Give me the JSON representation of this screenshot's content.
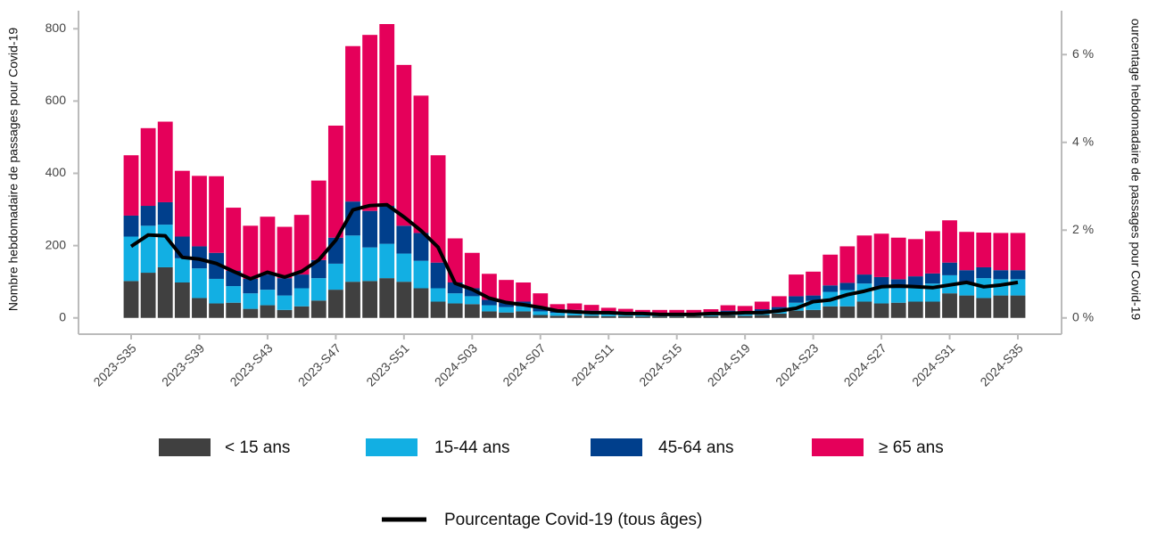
{
  "chart_data": {
    "type": "bar",
    "stacked": true,
    "y_label": "Nombre hebdomadaire de passages pour Covid-19",
    "y2_label": "ourcentage hebdomadaire de passages pour Covid-19",
    "categories": [
      "2023-S35",
      null,
      null,
      null,
      "2023-S39",
      null,
      null,
      null,
      "2023-S43",
      null,
      null,
      null,
      "2023-S47",
      null,
      null,
      null,
      "2023-S51",
      null,
      null,
      null,
      "2024-S03",
      null,
      null,
      null,
      "2024-S07",
      null,
      null,
      null,
      "2024-S11",
      null,
      null,
      null,
      "2024-S15",
      null,
      null,
      null,
      "2024-S19",
      null,
      null,
      null,
      "2024-S23",
      null,
      null,
      null,
      "2024-S27",
      null,
      null,
      null,
      "2024-S31",
      null,
      null,
      null,
      "2024-S35"
    ],
    "ylim": [
      -45,
      850
    ],
    "yticks": [
      0,
      200,
      400,
      600,
      800
    ],
    "y2lim": [
      -0.37,
      7.0
    ],
    "y2ticks": [
      {
        "value": 0,
        "label": "0 %"
      },
      {
        "value": 2,
        "label": "2 %"
      },
      {
        "value": 4,
        "label": "4 %"
      },
      {
        "value": 6,
        "label": "6 %"
      }
    ],
    "legend": "bottom",
    "series": [
      {
        "name": "< 15 ans",
        "color": "#404040",
        "values": [
          102,
          125,
          140,
          98,
          55,
          40,
          42,
          25,
          35,
          22,
          32,
          48,
          78,
          100,
          102,
          110,
          100,
          82,
          45,
          40,
          38,
          18,
          15,
          18,
          8,
          6,
          7,
          6,
          5,
          5,
          4,
          4,
          4,
          5,
          5,
          7,
          6,
          8,
          12,
          20,
          22,
          32,
          32,
          45,
          40,
          42,
          45,
          45,
          68,
          62,
          55,
          62,
          62
        ]
      },
      {
        "name": "15-44 ans",
        "color": "#12afe3",
        "values": [
          123,
          130,
          118,
          67,
          82,
          68,
          46,
          43,
          43,
          40,
          50,
          62,
          72,
          128,
          93,
          95,
          78,
          76,
          37,
          28,
          22,
          17,
          15,
          14,
          10,
          8,
          8,
          8,
          6,
          5,
          5,
          5,
          5,
          5,
          5,
          7,
          6,
          8,
          8,
          22,
          25,
          40,
          45,
          50,
          45,
          40,
          45,
          50,
          50,
          35,
          55,
          45,
          45
        ]
      },
      {
        "name": "45-64 ans",
        "color": "#003f8c",
        "values": [
          58,
          55,
          62,
          60,
          61,
          72,
          42,
          40,
          42,
          48,
          38,
          50,
          72,
          94,
          101,
          105,
          77,
          77,
          71,
          30,
          22,
          15,
          12,
          13,
          10,
          6,
          7,
          6,
          5,
          5,
          4,
          4,
          4,
          4,
          5,
          6,
          6,
          8,
          10,
          18,
          15,
          18,
          20,
          25,
          28,
          25,
          25,
          28,
          35,
          35,
          30,
          25,
          25
        ]
      },
      {
        "name": "≥ 65 ans",
        "color": "#e5005a",
        "values": [
          167,
          215,
          223,
          182,
          195,
          212,
          175,
          147,
          160,
          142,
          165,
          220,
          310,
          430,
          487,
          503,
          445,
          380,
          297,
          122,
          98,
          72,
          63,
          53,
          40,
          18,
          18,
          16,
          12,
          10,
          9,
          9,
          9,
          8,
          9,
          15,
          15,
          21,
          30,
          60,
          66,
          85,
          101,
          108,
          120,
          115,
          103,
          117,
          117,
          106,
          96,
          103,
          103
        ]
      },
      {
        "name": "Pourcentage Covid-19 (tous âges)",
        "type": "line",
        "axis": "y2",
        "color": "#000000",
        "values": [
          1.63,
          1.89,
          1.87,
          1.38,
          1.34,
          1.24,
          1.06,
          0.89,
          1.04,
          0.93,
          1.06,
          1.32,
          1.77,
          2.46,
          2.56,
          2.58,
          2.3,
          1.99,
          1.61,
          0.79,
          0.65,
          0.45,
          0.35,
          0.3,
          0.24,
          0.16,
          0.14,
          0.12,
          0.12,
          0.1,
          0.1,
          0.08,
          0.08,
          0.08,
          0.1,
          0.1,
          0.12,
          0.12,
          0.16,
          0.22,
          0.37,
          0.41,
          0.53,
          0.61,
          0.71,
          0.73,
          0.71,
          0.69,
          0.75,
          0.81,
          0.71,
          0.75,
          0.81
        ]
      }
    ]
  }
}
